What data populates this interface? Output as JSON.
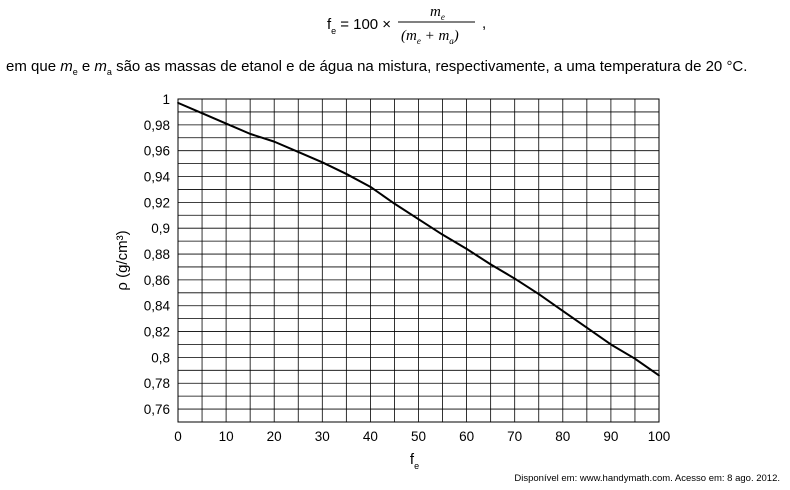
{
  "formula": {
    "lhs": "f",
    "lhs_sub": "e",
    "equals_text": "= 100 ×",
    "numerator": "m",
    "numerator_sub": "e",
    "denominator_open": "(m",
    "denominator_sub1": "e",
    "denominator_plus": " + m",
    "denominator_sub2": "a",
    "denominator_close": ")",
    "trailing": ","
  },
  "description": {
    "prefix": "em que ",
    "var1": "m",
    "var1_sub": "e",
    "connector": " e ",
    "var2": "m",
    "var2_sub": "a",
    "rest": " são as massas de etanol e de água na mistura, respectivamente, a uma temperatura de 20 °C."
  },
  "source": "Disponível em: www.handymath.com. Acesso em: 8 ago. 2012.",
  "chart_data": {
    "type": "line",
    "title": "",
    "xlabel": "f",
    "xlabel_sub": "e",
    "ylabel": "ρ (g/cm³)",
    "xlim": [
      0,
      100
    ],
    "ylim": [
      0.75,
      1.0
    ],
    "x_ticks": [
      0,
      10,
      20,
      30,
      40,
      50,
      60,
      70,
      80,
      90,
      100
    ],
    "x_tick_labels": [
      "0",
      "10",
      "20",
      "30",
      "40",
      "50",
      "60",
      "70",
      "80",
      "90",
      "100"
    ],
    "y_ticks": [
      0.76,
      0.78,
      0.8,
      0.82,
      0.84,
      0.86,
      0.88,
      0.9,
      0.92,
      0.94,
      0.96,
      0.98,
      1.0
    ],
    "y_tick_labels": [
      "0,76",
      "0,78",
      "0,8",
      "0,82",
      "0,84",
      "0,86",
      "0,88",
      "0,9",
      "0,92",
      "0,94",
      "0,96",
      "0,98",
      "1"
    ],
    "x_minor_step": 5,
    "y_minor_step": 0.01,
    "grid": true,
    "series": [
      {
        "x": [
          0,
          5,
          10,
          15,
          20,
          25,
          30,
          35,
          40,
          45,
          50,
          55,
          60,
          65,
          70,
          75,
          80,
          85,
          90,
          95,
          100
        ],
        "y": [
          0.997,
          0.989,
          0.981,
          0.973,
          0.967,
          0.959,
          0.951,
          0.942,
          0.932,
          0.919,
          0.907,
          0.895,
          0.884,
          0.872,
          0.861,
          0.849,
          0.836,
          0.823,
          0.81,
          0.799,
          0.786
        ]
      }
    ]
  }
}
